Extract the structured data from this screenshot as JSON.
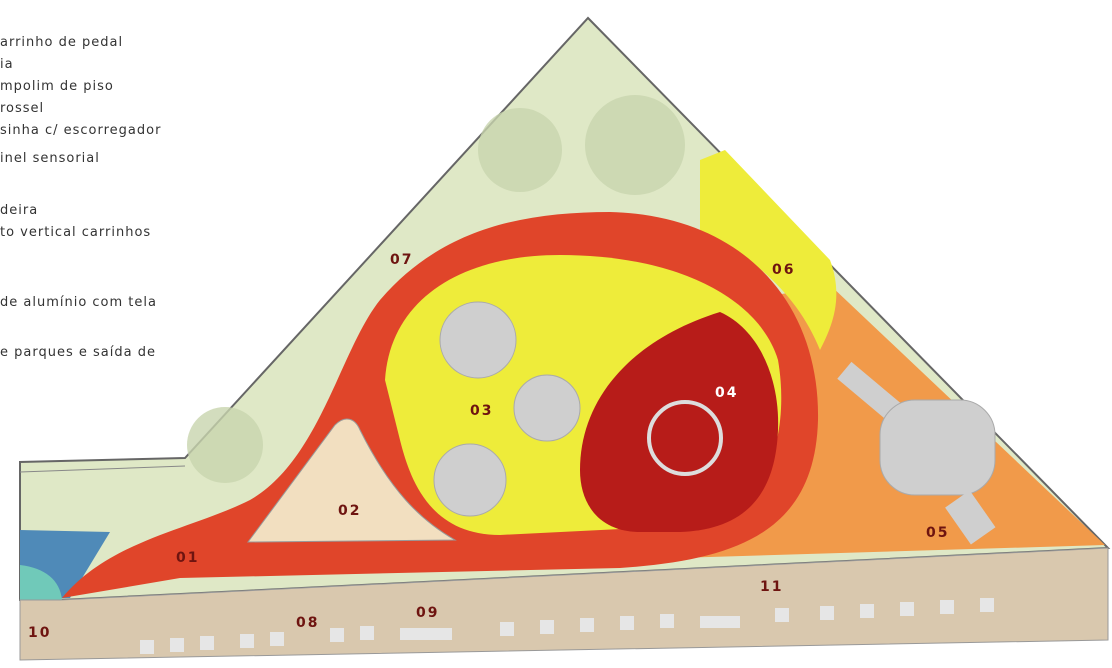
{
  "legend": [
    "arrinho de pedal",
    "ia",
    "mpolim de piso",
    "rossel",
    "sinha c/ escorregador",
    "inel sensorial",
    "deira",
    "to vertical carrinhos",
    "de alumínio com tela",
    "e parques e saída de"
  ],
  "labels": [
    "01",
    "02",
    "03",
    "04",
    "05",
    "06",
    "07",
    "08",
    "09",
    "10",
    "11"
  ]
}
